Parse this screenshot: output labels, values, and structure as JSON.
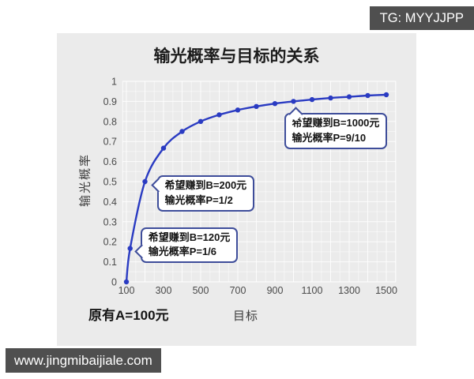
{
  "watermarks": {
    "top_right": "TG: MYYJJPP",
    "bottom_left": "www.jingmibaijiale.com"
  },
  "chart_data": {
    "type": "line",
    "title": "输光概率与目标的关系",
    "xlabel": "目标",
    "ylabel": "输光概率",
    "note": "原有A=100元",
    "x": [
      100,
      120,
      200,
      300,
      400,
      500,
      600,
      700,
      800,
      900,
      1000,
      1100,
      1200,
      1300,
      1400,
      1500
    ],
    "series": [
      {
        "name": "输光概率",
        "values": [
          0,
          0.167,
          0.5,
          0.667,
          0.75,
          0.8,
          0.833,
          0.857,
          0.875,
          0.889,
          0.9,
          0.909,
          0.917,
          0.923,
          0.929,
          0.933
        ]
      }
    ],
    "xticks": [
      100,
      300,
      500,
      700,
      900,
      1100,
      1300,
      1500
    ],
    "ytick_labels": [
      "1",
      "0.9",
      "0.8",
      "0.7",
      "0.6",
      "0.5",
      "0.4",
      "0.3",
      "0.2",
      "0.1",
      "0"
    ],
    "xlim": [
      80,
      1550
    ],
    "ylim": [
      0,
      1
    ],
    "grid": true,
    "legend": false,
    "annotations": [
      {
        "line1": "希望赚到B=200元",
        "line2": "输光概率P=1/2",
        "target_x": 200,
        "target_y": 0.5
      },
      {
        "line1": "希望赚到B=120元",
        "line2": "输光概率P=1/6",
        "target_x": 120,
        "target_y": 0.167
      },
      {
        "line1": "希望赚到B=1000元",
        "line2": "输光概率P=9/10",
        "target_x": 1000,
        "target_y": 0.9
      }
    ],
    "colors": {
      "line": "#2a3bc2",
      "annotation_border": "#3e4d9a",
      "panel_bg": "#ebebeb",
      "grid": "#ffffff",
      "watermark_bg": "#4f4f4f"
    }
  }
}
